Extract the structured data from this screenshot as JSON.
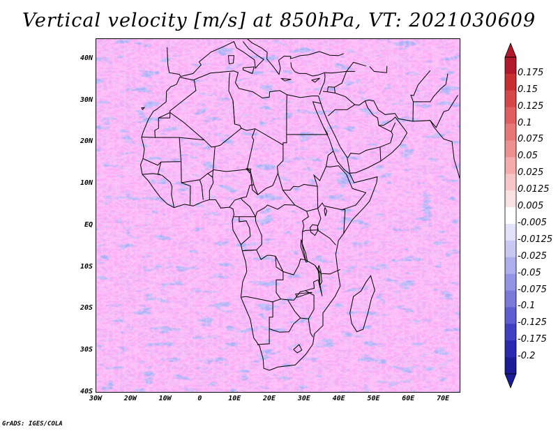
{
  "title": "Vertical velocity [m/s] at 850hPa, VT: 2021030609",
  "footer": "GrADS: IGES/COLA",
  "map": {
    "projection": "latlon",
    "lon_range": [
      -30,
      75
    ],
    "lat_range": [
      -40,
      45
    ],
    "lat_labels": [
      "40N",
      "30N",
      "20N",
      "10N",
      "EQ",
      "10S",
      "20S",
      "30S",
      "40S"
    ],
    "lon_labels": [
      "30W",
      "20W",
      "10W",
      "0",
      "10E",
      "20E",
      "30E",
      "40E",
      "50E",
      "60E",
      "70E"
    ],
    "field": "vertical velocity",
    "units": "m/s",
    "pressure_level": "850hPa",
    "valid_time": "2021030609"
  },
  "colorbar": {
    "labels": [
      "0.175",
      "0.15",
      "0.125",
      "0.1",
      "0.075",
      "0.05",
      "0.025",
      "0.0125",
      "0.005",
      "-0.005",
      "-0.0125",
      "-0.025",
      "-0.05",
      "-0.075",
      "-0.1",
      "-0.125",
      "-0.175",
      "-0.2"
    ],
    "colors": [
      "#b2182b",
      "#c82f33",
      "#d6474a",
      "#e05e60",
      "#e87878",
      "#ee9090",
      "#f3abab",
      "#f7c6c6",
      "#fbe2e2",
      "#ffffff",
      "#e2e2fb",
      "#c8c8f3",
      "#aeaeec",
      "#9494e4",
      "#7a7adb",
      "#5e5ed0",
      "#4040c3",
      "#2a2ab0",
      "#1c1c98"
    ]
  },
  "colors": {
    "positive": "#d6474a",
    "negative": "#5e5ed0",
    "coastline": "#000000",
    "background": "#ffffff"
  }
}
